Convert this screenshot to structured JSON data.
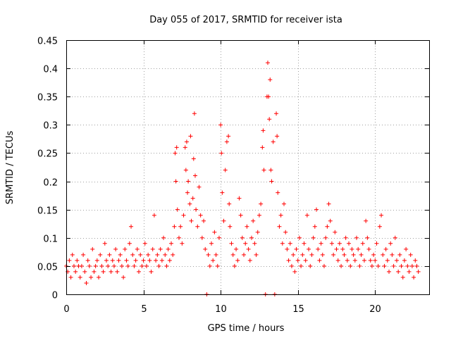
{
  "chart_data": {
    "type": "scatter",
    "title": "Day 055 of 2017, SRMTID for receiver ista",
    "xlabel": "GPS time / hours",
    "ylabel": "SRMTID / TECUs",
    "xlim": [
      0,
      23.5
    ],
    "ylim": [
      0,
      0.45
    ],
    "xticks": [
      0,
      5,
      10,
      15,
      20
    ],
    "xtick_labels": [
      "0",
      "5",
      "10",
      "15",
      "20"
    ],
    "yticks": [
      0,
      0.05,
      0.1,
      0.15,
      0.2,
      0.25,
      0.3,
      0.35,
      0.4,
      0.45
    ],
    "ytick_labels": [
      "0",
      "0.05",
      "0.1",
      "0.15",
      "0.2",
      "0.25",
      "0.3",
      "0.35",
      "0.4",
      "0.45"
    ],
    "grid": true,
    "marker": "plus",
    "marker_color": "#ff0000",
    "series": [
      {
        "name": "SRMTID",
        "points": [
          [
            0.0,
            0.05
          ],
          [
            0.1,
            0.04
          ],
          [
            0.2,
            0.06
          ],
          [
            0.3,
            0.03
          ],
          [
            0.4,
            0.07
          ],
          [
            0.5,
            0.05
          ],
          [
            0.6,
            0.04
          ],
          [
            0.7,
            0.06
          ],
          [
            0.8,
            0.05
          ],
          [
            0.9,
            0.03
          ],
          [
            1.0,
            0.05
          ],
          [
            1.1,
            0.07
          ],
          [
            1.2,
            0.04
          ],
          [
            1.3,
            0.02
          ],
          [
            1.4,
            0.06
          ],
          [
            1.5,
            0.05
          ],
          [
            1.6,
            0.03
          ],
          [
            1.7,
            0.08
          ],
          [
            1.8,
            0.04
          ],
          [
            1.9,
            0.05
          ],
          [
            2.0,
            0.06
          ],
          [
            2.1,
            0.03
          ],
          [
            2.2,
            0.07
          ],
          [
            2.3,
            0.05
          ],
          [
            2.4,
            0.04
          ],
          [
            2.5,
            0.09
          ],
          [
            2.6,
            0.06
          ],
          [
            2.7,
            0.05
          ],
          [
            2.8,
            0.07
          ],
          [
            2.9,
            0.04
          ],
          [
            3.0,
            0.06
          ],
          [
            3.1,
            0.05
          ],
          [
            3.2,
            0.08
          ],
          [
            3.3,
            0.04
          ],
          [
            3.4,
            0.06
          ],
          [
            3.5,
            0.07
          ],
          [
            3.6,
            0.05
          ],
          [
            3.7,
            0.03
          ],
          [
            3.8,
            0.08
          ],
          [
            3.9,
            0.06
          ],
          [
            4.0,
            0.05
          ],
          [
            4.1,
            0.09
          ],
          [
            4.2,
            0.12
          ],
          [
            4.3,
            0.07
          ],
          [
            4.4,
            0.05
          ],
          [
            4.5,
            0.06
          ],
          [
            4.6,
            0.08
          ],
          [
            4.7,
            0.04
          ],
          [
            4.8,
            0.07
          ],
          [
            4.9,
            0.05
          ],
          [
            5.0,
            0.06
          ],
          [
            5.1,
            0.09
          ],
          [
            5.2,
            0.05
          ],
          [
            5.3,
            0.07
          ],
          [
            5.4,
            0.06
          ],
          [
            5.5,
            0.04
          ],
          [
            5.6,
            0.08
          ],
          [
            5.7,
            0.14
          ],
          [
            5.8,
            0.06
          ],
          [
            5.9,
            0.07
          ],
          [
            6.0,
            0.05
          ],
          [
            6.1,
            0.08
          ],
          [
            6.2,
            0.06
          ],
          [
            6.3,
            0.1
          ],
          [
            6.4,
            0.07
          ],
          [
            6.5,
            0.05
          ],
          [
            6.6,
            0.08
          ],
          [
            6.7,
            0.06
          ],
          [
            6.8,
            0.09
          ],
          [
            6.9,
            0.07
          ],
          [
            7.0,
            0.12
          ],
          [
            7.05,
            0.25
          ],
          [
            7.1,
            0.2
          ],
          [
            7.15,
            0.26
          ],
          [
            7.2,
            0.15
          ],
          [
            7.3,
            0.1
          ],
          [
            7.4,
            0.12
          ],
          [
            7.5,
            0.09
          ],
          [
            7.6,
            0.14
          ],
          [
            7.7,
            0.26
          ],
          [
            7.75,
            0.22
          ],
          [
            7.8,
            0.27
          ],
          [
            7.85,
            0.18
          ],
          [
            7.9,
            0.2
          ],
          [
            8.0,
            0.16
          ],
          [
            8.05,
            0.28
          ],
          [
            8.1,
            0.13
          ],
          [
            8.2,
            0.17
          ],
          [
            8.25,
            0.24
          ],
          [
            8.3,
            0.32
          ],
          [
            8.35,
            0.21
          ],
          [
            8.4,
            0.15
          ],
          [
            8.5,
            0.12
          ],
          [
            8.6,
            0.19
          ],
          [
            8.7,
            0.14
          ],
          [
            8.8,
            0.1
          ],
          [
            8.9,
            0.13
          ],
          [
            9.0,
            0.08
          ],
          [
            9.1,
            0.0
          ],
          [
            9.2,
            0.07
          ],
          [
            9.3,
            0.05
          ],
          [
            9.4,
            0.09
          ],
          [
            9.5,
            0.06
          ],
          [
            9.6,
            0.11
          ],
          [
            9.7,
            0.07
          ],
          [
            9.8,
            0.05
          ],
          [
            9.9,
            0.1
          ],
          [
            10.0,
            0.3
          ],
          [
            10.05,
            0.25
          ],
          [
            10.1,
            0.18
          ],
          [
            10.2,
            0.13
          ],
          [
            10.3,
            0.22
          ],
          [
            10.4,
            0.27
          ],
          [
            10.5,
            0.28
          ],
          [
            10.55,
            0.16
          ],
          [
            10.6,
            0.12
          ],
          [
            10.7,
            0.09
          ],
          [
            10.8,
            0.07
          ],
          [
            10.9,
            0.05
          ],
          [
            11.0,
            0.08
          ],
          [
            11.1,
            0.06
          ],
          [
            11.2,
            0.17
          ],
          [
            11.3,
            0.14
          ],
          [
            11.4,
            0.1
          ],
          [
            11.5,
            0.07
          ],
          [
            11.6,
            0.09
          ],
          [
            11.7,
            0.12
          ],
          [
            11.8,
            0.08
          ],
          [
            11.9,
            0.06
          ],
          [
            12.0,
            0.1
          ],
          [
            12.1,
            0.13
          ],
          [
            12.2,
            0.09
          ],
          [
            12.3,
            0.07
          ],
          [
            12.4,
            0.11
          ],
          [
            12.5,
            0.14
          ],
          [
            12.6,
            0.16
          ],
          [
            12.7,
            0.26
          ],
          [
            12.75,
            0.29
          ],
          [
            12.8,
            0.22
          ],
          [
            12.9,
            0.0
          ],
          [
            13.0,
            0.35
          ],
          [
            13.05,
            0.41
          ],
          [
            13.1,
            0.35
          ],
          [
            13.15,
            0.31
          ],
          [
            13.2,
            0.38
          ],
          [
            13.25,
            0.22
          ],
          [
            13.3,
            0.2
          ],
          [
            13.4,
            0.27
          ],
          [
            13.5,
            0.0
          ],
          [
            13.6,
            0.32
          ],
          [
            13.65,
            0.28
          ],
          [
            13.7,
            0.18
          ],
          [
            13.8,
            0.12
          ],
          [
            13.9,
            0.14
          ],
          [
            14.0,
            0.09
          ],
          [
            14.1,
            0.16
          ],
          [
            14.2,
            0.11
          ],
          [
            14.3,
            0.08
          ],
          [
            14.4,
            0.06
          ],
          [
            14.5,
            0.09
          ],
          [
            14.6,
            0.05
          ],
          [
            14.7,
            0.07
          ],
          [
            14.8,
            0.04
          ],
          [
            14.9,
            0.08
          ],
          [
            15.0,
            0.06
          ],
          [
            15.1,
            0.1
          ],
          [
            15.2,
            0.05
          ],
          [
            15.3,
            0.07
          ],
          [
            15.4,
            0.09
          ],
          [
            15.5,
            0.06
          ],
          [
            15.6,
            0.14
          ],
          [
            15.7,
            0.08
          ],
          [
            15.8,
            0.05
          ],
          [
            15.9,
            0.07
          ],
          [
            16.0,
            0.1
          ],
          [
            16.1,
            0.12
          ],
          [
            16.2,
            0.15
          ],
          [
            16.3,
            0.08
          ],
          [
            16.4,
            0.06
          ],
          [
            16.5,
            0.09
          ],
          [
            16.6,
            0.07
          ],
          [
            16.7,
            0.05
          ],
          [
            16.8,
            0.1
          ],
          [
            16.9,
            0.12
          ],
          [
            17.0,
            0.16
          ],
          [
            17.1,
            0.13
          ],
          [
            17.2,
            0.09
          ],
          [
            17.3,
            0.07
          ],
          [
            17.4,
            0.11
          ],
          [
            17.5,
            0.08
          ],
          [
            17.6,
            0.06
          ],
          [
            17.7,
            0.09
          ],
          [
            17.8,
            0.05
          ],
          [
            17.9,
            0.08
          ],
          [
            18.0,
            0.07
          ],
          [
            18.1,
            0.1
          ],
          [
            18.2,
            0.06
          ],
          [
            18.3,
            0.09
          ],
          [
            18.4,
            0.05
          ],
          [
            18.5,
            0.08
          ],
          [
            18.6,
            0.07
          ],
          [
            18.7,
            0.06
          ],
          [
            18.8,
            0.1
          ],
          [
            18.9,
            0.08
          ],
          [
            19.0,
            0.05
          ],
          [
            19.1,
            0.07
          ],
          [
            19.2,
            0.09
          ],
          [
            19.3,
            0.06
          ],
          [
            19.4,
            0.13
          ],
          [
            19.5,
            0.1
          ],
          [
            19.6,
            0.08
          ],
          [
            19.7,
            0.06
          ],
          [
            19.8,
            0.05
          ],
          [
            19.9,
            0.07
          ],
          [
            20.0,
            0.06
          ],
          [
            20.1,
            0.09
          ],
          [
            20.2,
            0.05
          ],
          [
            20.3,
            0.12
          ],
          [
            20.4,
            0.14
          ],
          [
            20.5,
            0.07
          ],
          [
            20.6,
            0.05
          ],
          [
            20.7,
            0.08
          ],
          [
            20.8,
            0.06
          ],
          [
            20.9,
            0.04
          ],
          [
            21.0,
            0.09
          ],
          [
            21.1,
            0.07
          ],
          [
            21.2,
            0.05
          ],
          [
            21.3,
            0.1
          ],
          [
            21.4,
            0.06
          ],
          [
            21.5,
            0.04
          ],
          [
            21.6,
            0.07
          ],
          [
            21.7,
            0.05
          ],
          [
            21.8,
            0.03
          ],
          [
            21.9,
            0.06
          ],
          [
            22.0,
            0.08
          ],
          [
            22.1,
            0.05
          ],
          [
            22.2,
            0.04
          ],
          [
            22.3,
            0.07
          ],
          [
            22.4,
            0.05
          ],
          [
            22.5,
            0.03
          ],
          [
            22.6,
            0.06
          ],
          [
            22.7,
            0.05
          ],
          [
            22.8,
            0.04
          ]
        ]
      }
    ]
  }
}
